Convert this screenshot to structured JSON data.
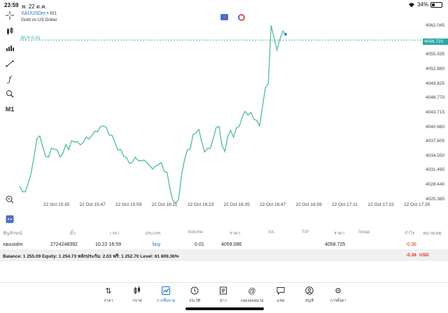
{
  "status_bar": {
    "time": "23:59",
    "date": "พ. 22 ต.ค.",
    "battery": "34%",
    "battery_level": 0.34
  },
  "chart": {
    "symbol": "XAUUSDm",
    "timeframe_suffix": "• M1",
    "description": "Gold vs US Dollar",
    "buy_line_label": "BUY 0.01",
    "buy_price": 4059.086,
    "current_price": "4058.725",
    "timeframe_button": "M1",
    "price_ticks": [
      "4062.045",
      "4058.725",
      "4055.935",
      "4052.880",
      "4049.825",
      "4046.770",
      "4043.715",
      "4040.660",
      "4037.605",
      "4034.550",
      "4031.495",
      "4028.440",
      "4025.385"
    ],
    "time_ticks": [
      "22 Oct 15:35",
      "22 Oct 15:47",
      "22 Oct 15:59",
      "22 Oct 16:11",
      "22 Oct 16:23",
      "22 Oct 16:35",
      "22 Oct 16:47",
      "22 Oct 16:59",
      "22 Oct 17:11",
      "22 Oct 17:23",
      "22 Oct 17:35"
    ],
    "line_color": "#4fbf8f",
    "buy_line_color": "#2aa6a6"
  },
  "chart_data": {
    "type": "line",
    "ylim": [
      4024.0,
      4064.0
    ],
    "x": [
      0,
      1,
      2,
      3,
      4,
      5,
      6,
      7,
      8,
      9,
      10,
      11,
      12,
      13,
      14,
      15,
      16,
      17,
      18,
      19,
      20,
      21,
      22,
      23,
      24,
      25,
      26,
      27,
      28,
      29,
      30,
      31,
      32,
      33,
      34,
      35,
      36,
      37,
      38,
      39,
      40,
      41,
      42,
      43,
      44,
      45,
      46,
      47,
      48,
      49,
      50,
      51,
      52,
      53,
      54,
      55,
      56,
      57,
      58,
      59,
      60,
      61,
      62,
      63,
      64,
      65,
      66,
      67,
      68,
      69,
      70,
      71,
      72,
      73,
      74,
      75,
      76,
      77,
      78,
      79,
      80,
      81,
      82,
      83,
      84,
      85,
      86,
      87,
      88,
      89,
      90,
      91,
      92
    ],
    "series": [
      {
        "values": [
          4028.2,
          4027.0,
          4027.0,
          4028.8,
          4031.0,
          4034.5,
          4038.2,
          4038.8,
          4036.5,
          4034.5,
          4034.3,
          4036.2,
          4036.0,
          4035.8,
          4034.3,
          4035.2,
          4037.0,
          4035.9,
          4037.8,
          4037.5,
          4037.6,
          4036.9,
          4037.4,
          4038.6,
          4038.1,
          4038.9,
          4039.8,
          4039.7,
          4040.8,
          4040.9,
          4040.6,
          4039.0,
          4038.9,
          4037.4,
          4035.8,
          4035.9,
          4034.5,
          4034.2,
          4033.0,
          4033.2,
          4034.3,
          4033.6,
          4033.5,
          4033.7,
          4033.2,
          4032.5,
          4031.8,
          4032.4,
          4032.7,
          4033.2,
          4031.3,
          4031.1,
          4027.6,
          4025.2,
          4024.6,
          4025.4,
          4030.5,
          4033.6,
          4035.8,
          4036.0,
          4039.1,
          4039.4,
          4040.2,
          4037.5,
          4035.4,
          4036.2,
          4036.2,
          4038.3,
          4040.6,
          4040.8,
          4036.8,
          4035.5,
          4038.7,
          4040.0,
          4038.5,
          4040.5,
          4040.8,
          4042.8,
          4044.0,
          4043.2,
          4043.8,
          4042.3,
          4042.1,
          4040.9,
          4045.0,
          4049.0,
          4049.8,
          4062.2,
          4059.5,
          4057.0,
          4059.2,
          4061.0,
          4060.3
        ]
      }
    ]
  },
  "table": {
    "headers": [
      "สัญลักษณ์",
      "ตั๋ว",
      "เวลา",
      "ประเภท",
      "Volume",
      "ราคา",
      "S/L",
      "T/P",
      "ราคา",
      "Swap",
      "กำไร",
      "หมายเหตุ"
    ],
    "row": {
      "symbol": "xauusdm",
      "ticket": "2724248392",
      "time": "10.22 16:59",
      "type": "buy",
      "volume": "0.01",
      "open_price": "4059.086",
      "current_price": "4058.725",
      "profit": "-0.36"
    },
    "balance_text": "Balance: 1 255.09 Equity: 1 254.73 หลักประกัน: 2.03 ฟรี: 1 252.70 Level: 61 809.36%",
    "total_profit": "-0.36",
    "currency": "USD"
  },
  "nav": {
    "items": [
      {
        "label": "ราคา",
        "icon": "quotes-icon"
      },
      {
        "label": "กราฟ",
        "icon": "candles-icon"
      },
      {
        "label": "การซื้อขาย",
        "icon": "trade-icon"
      },
      {
        "label": "ประวัติ",
        "icon": "history-icon"
      },
      {
        "label": "ข่าว",
        "icon": "news-icon"
      },
      {
        "label": "กล่องจดหมาย",
        "icon": "mailbox-icon"
      },
      {
        "label": "แชท",
        "icon": "chat-icon"
      },
      {
        "label": "บัญชี",
        "icon": "account-icon"
      },
      {
        "label": "การตั้งค่า",
        "icon": "settings-icon"
      }
    ],
    "active_index": 2,
    "active_color": "#1c6fd1"
  }
}
